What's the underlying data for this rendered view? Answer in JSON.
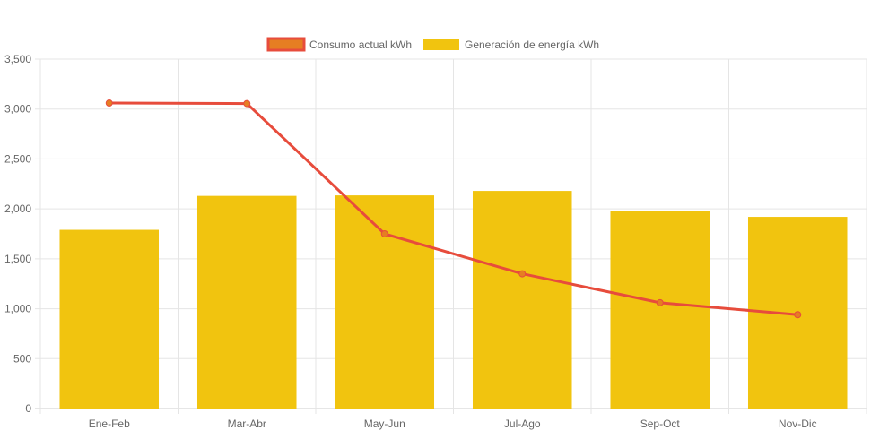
{
  "chart_data": {
    "type": "bar",
    "categories": [
      "Ene-Feb",
      "Mar-Abr",
      "May-Jun",
      "Jul-Ago",
      "Sep-Oct",
      "Nov-Dic"
    ],
    "series": [
      {
        "name": "Consumo actual kWh",
        "type": "line",
        "values": [
          3060,
          3055,
          1750,
          1350,
          1060,
          940
        ],
        "color": "#e74c3c",
        "fill": "#e67e22"
      },
      {
        "name": "Generación de energía kWh",
        "type": "bar",
        "values": [
          1790,
          2130,
          2135,
          2180,
          1975,
          1920
        ],
        "color": "#f1c40f"
      }
    ],
    "yticks": [
      "0",
      "500",
      "1,000",
      "1,500",
      "2,000",
      "2,500",
      "3,000",
      "3,500"
    ],
    "ylim": [
      0,
      3500
    ],
    "legend_position": "top",
    "grid": true,
    "title": "",
    "xlabel": "",
    "ylabel": ""
  }
}
